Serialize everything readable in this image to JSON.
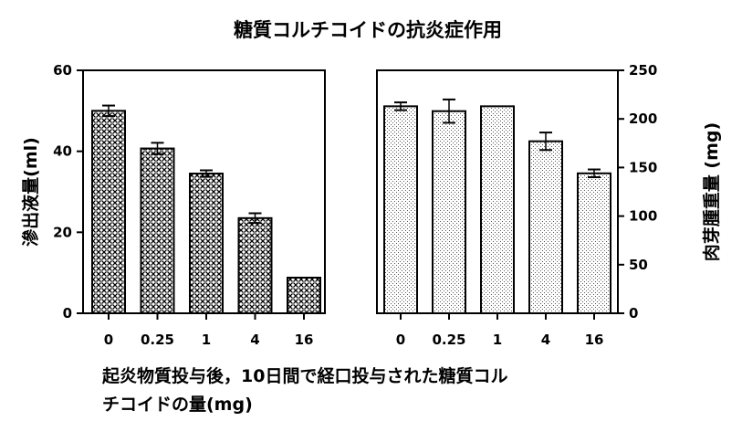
{
  "title": "糖質コルチコイドの抗炎症作用",
  "caption": {
    "line1": "起炎物質投与後，10日間で経口投与された糖質コル",
    "line2": "チコイドの量(mg)"
  },
  "chart_data": [
    {
      "type": "bar",
      "categories": [
        "0",
        "0.25",
        "1",
        "4",
        "16"
      ],
      "values": [
        50,
        40.7,
        34.5,
        23.5,
        8.8
      ],
      "errors": [
        1.3,
        1.4,
        0.8,
        1.2,
        0
      ],
      "ylabel": "滲出液量(ml)",
      "ylim": [
        0,
        60
      ],
      "yticks": [
        0,
        20,
        40,
        60
      ],
      "axis_side": "left",
      "pattern": "dense-crosshatch"
    },
    {
      "type": "bar",
      "categories": [
        "0",
        "0.25",
        "1",
        "4",
        "16"
      ],
      "values": [
        213,
        208,
        213,
        177,
        144
      ],
      "errors": [
        4,
        12,
        0,
        9,
        4
      ],
      "ylabel": "肉芽腫重量 (mg)",
      "ylim": [
        0,
        250
      ],
      "yticks": [
        0,
        50,
        100,
        150,
        200,
        250
      ],
      "axis_side": "right",
      "pattern": "light-dots"
    }
  ]
}
